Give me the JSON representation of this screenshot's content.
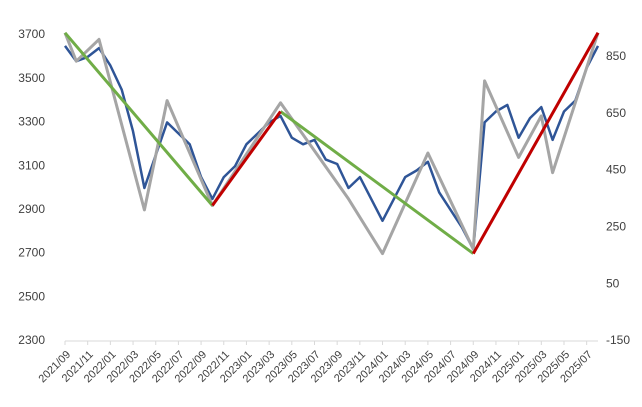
{
  "chart_data": {
    "type": "line",
    "x": [
      "2021/09",
      "2021/10",
      "2021/11",
      "2021/12",
      "2022/01",
      "2022/02",
      "2022/03",
      "2022/04",
      "2022/05",
      "2022/06",
      "2022/07",
      "2022/08",
      "2022/09",
      "2022/10",
      "2022/11",
      "2022/12",
      "2023/01",
      "2023/02",
      "2023/03",
      "2023/04",
      "2023/05",
      "2023/06",
      "2023/07",
      "2023/08",
      "2023/09",
      "2023/10",
      "2023/11",
      "2023/12",
      "2024/01",
      "2024/02",
      "2024/03",
      "2024/04",
      "2024/05",
      "2024/06",
      "2024/07",
      "2024/08",
      "2024/09",
      "2024/10",
      "2024/11",
      "2024/12",
      "2025/01",
      "2025/02",
      "2025/03",
      "2025/04",
      "2025/05",
      "2025/06",
      "2025/07",
      "2025/08"
    ],
    "xticks": [
      "2021/09",
      "2021/11",
      "2022/01",
      "2022/03",
      "2022/05",
      "2022/07",
      "2022/09",
      "2022/11",
      "2023/01",
      "2023/03",
      "2023/05",
      "2023/07",
      "2023/09",
      "2023/11",
      "2024/01",
      "2024/03",
      "2024/05",
      "2024/07",
      "2024/09",
      "2024/11",
      "2025/01",
      "2025/03",
      "2025/05",
      "2025/07"
    ],
    "series": [
      {
        "color": "#2f5597",
        "values": [
          3650,
          3580,
          3600,
          3640,
          3560,
          3450,
          3260,
          3000,
          3150,
          3300,
          3250,
          3200,
          3050,
          2950,
          3050,
          3100,
          3200,
          3250,
          3300,
          3330,
          3230,
          3200,
          3220,
          3130,
          3110,
          3000,
          3050,
          2950,
          2850,
          2950,
          3050,
          3080,
          3120,
          2980,
          2900,
          2820,
          2720,
          3300,
          3350,
          3380,
          3230,
          3320,
          3370,
          3220,
          3350,
          3400,
          3550,
          3650
        ]
      },
      {
        "color": "#a5a5a5",
        "x": [
          "2021/09",
          "2021/10",
          "2021/12",
          "2022/04",
          "2022/06",
          "2022/10",
          "2023/04",
          "2023/10",
          "2024/01",
          "2024/05",
          "2024/09",
          "2024/10",
          "2025/01",
          "2025/03",
          "2025/04",
          "2025/08"
        ],
        "values": [
          3710,
          3580,
          3680,
          2900,
          3400,
          2920,
          3390,
          2950,
          2700,
          3160,
          2720,
          3490,
          3140,
          3330,
          3070,
          3710
        ]
      },
      {
        "color": "#70ad47",
        "x": [
          "2021/09",
          "2022/10"
        ],
        "values": [
          3710,
          2920
        ]
      },
      {
        "color": "#70ad47",
        "x": [
          "2023/04",
          "2024/09"
        ],
        "values": [
          3350,
          2700
        ]
      },
      {
        "color": "#c00000",
        "x": [
          "2022/10",
          "2023/04"
        ],
        "values": [
          2920,
          3350
        ]
      },
      {
        "color": "#c00000",
        "x": [
          "2024/09",
          "2025/08"
        ],
        "values": [
          2700,
          3710
        ]
      }
    ],
    "ylim": [
      2300,
      3700
    ],
    "yticks": [
      2300,
      2500,
      2700,
      2900,
      3100,
      3300,
      3500,
      3700
    ],
    "y2lim": [
      -150,
      927
    ],
    "y2ticks": [
      -150,
      50,
      250,
      450,
      650,
      850
    ]
  }
}
